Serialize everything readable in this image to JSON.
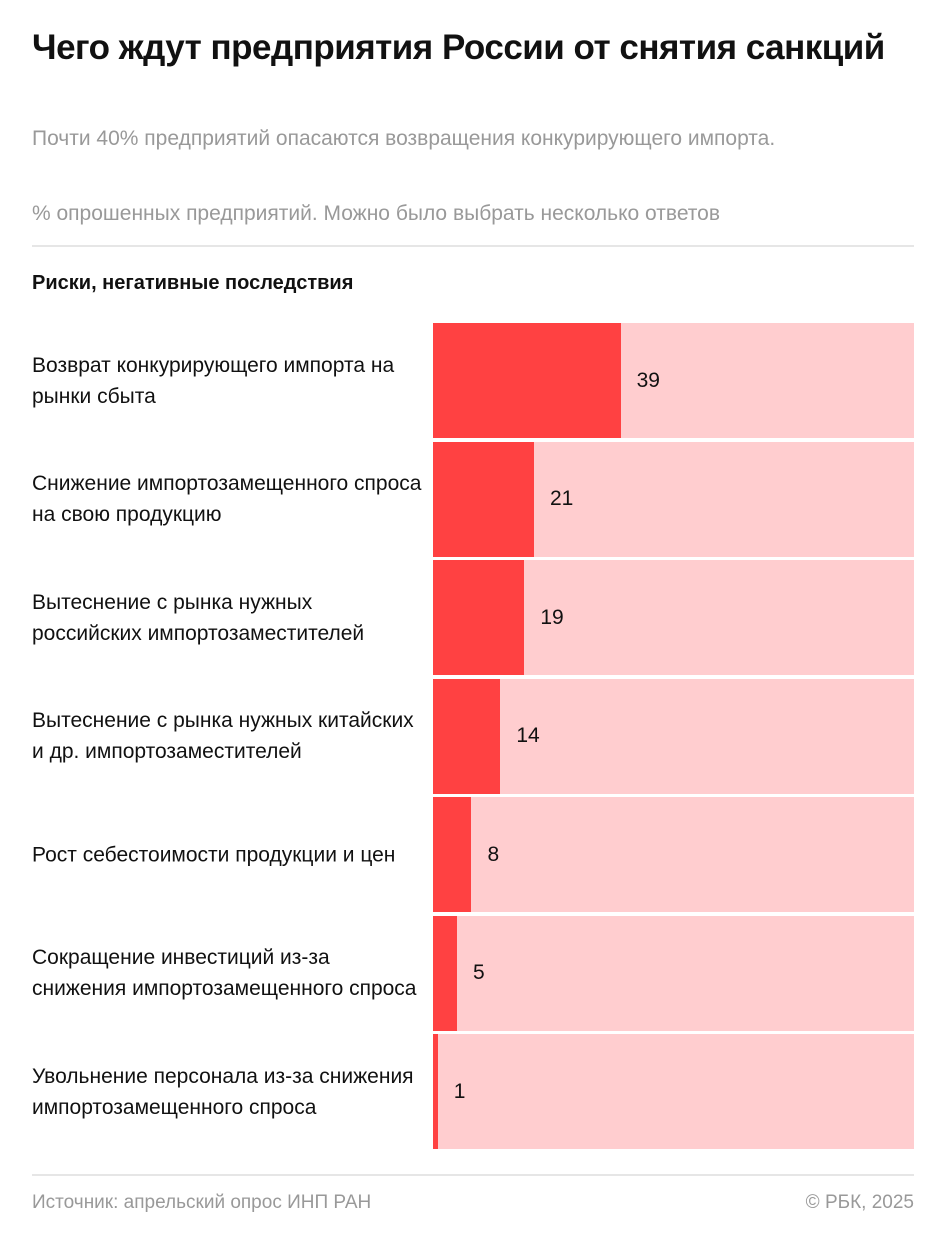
{
  "header": {
    "title": "Чего ждут предприятия России от снятия санкций",
    "subtitle": "Почти 40% предприятий опасаются возвращения конкурирующего импорта.",
    "note": "% опрошенных предприятий. Можно было выбрать несколько ответов"
  },
  "section_title": "Риски, негативные последствия",
  "chart_data": {
    "type": "bar",
    "orientation": "horizontal",
    "title": "Риски, негативные последствия",
    "xlim": [
      0,
      100
    ],
    "categories": [
      "Возврат конкурирующего импорта на рынки сбыта",
      "Снижение импортозамещенного спроса на свою продукцию",
      "Вытеснение с рынка нужных российских импортозаместителей",
      "Вытеснение с рынка нужных китайских и др. импортозаместителей",
      "Рост себестоимости продукции и цен",
      "Сокращение инвестиций из-за снижения импортозамещенного спроса",
      "Увольнение персонала из-за снижения импортозамещенного спроса"
    ],
    "values": [
      39,
      21,
      19,
      14,
      8,
      5,
      1
    ],
    "colors": {
      "fill": "#ff4142",
      "track": "#ffcdcf"
    }
  },
  "footer": {
    "source": "Источник: апрельский опрос ИНП РАН",
    "copyright": "© РБК, 2025"
  }
}
